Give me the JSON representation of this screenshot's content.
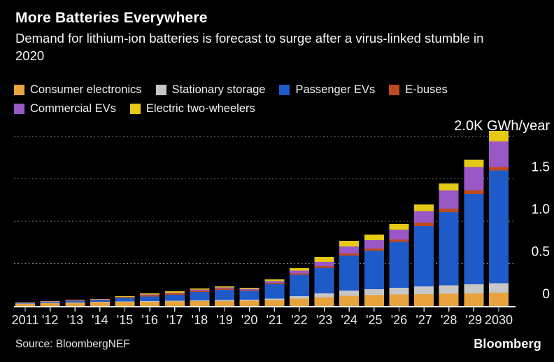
{
  "chart_data": {
    "type": "bar",
    "stacked": true,
    "title": "More Batteries Everywhere",
    "subtitle": "Demand for lithium-ion batteries is forecast to surge after a virus-linked stumble in 2020",
    "unit": "GWh/year",
    "top_axis_label": "2.0K GWh/year",
    "ylim": [
      0,
      2000
    ],
    "gridlines_gwh": [
      500,
      1000,
      1500,
      2000
    ],
    "grid_style": "dotted horizontal, labels on right",
    "legend_position": "top-left, two rows",
    "categories": [
      2011,
      2012,
      2013,
      2014,
      2015,
      2016,
      2017,
      2018,
      2019,
      2020,
      2021,
      2022,
      2023,
      2024,
      2025,
      2026,
      2027,
      2028,
      2029,
      2030
    ],
    "x_tick_labels": [
      "2011",
      "'12",
      "'13",
      "'14",
      "'15",
      "'16",
      "'17",
      "'18",
      "'19",
      "'20",
      "'21",
      "'22",
      "'23",
      "'24",
      "'25",
      "'26",
      "'27",
      "'28",
      "'29",
      "2030"
    ],
    "y_ticks": [
      {
        "value": 0,
        "label": "0"
      },
      {
        "value": 500,
        "label": "0.5"
      },
      {
        "value": 1000,
        "label": "1.0"
      },
      {
        "value": 1500,
        "label": "1.5"
      }
    ],
    "series": [
      {
        "name": "Consumer electronics",
        "color": "#E8A33D",
        "values": [
          28,
          34,
          40,
          44,
          48,
          50,
          53,
          56,
          58,
          60,
          70,
          85,
          105,
          120,
          130,
          135,
          140,
          145,
          150,
          155
        ]
      },
      {
        "name": "Stationary storage",
        "color": "#C7C7C7",
        "values": [
          2,
          3,
          3,
          4,
          5,
          7,
          8,
          10,
          13,
          15,
          18,
          30,
          45,
          60,
          70,
          80,
          90,
          100,
          108,
          112
        ]
      },
      {
        "name": "Passenger EVs",
        "color": "#1E5BC8",
        "values": [
          6,
          12,
          20,
          22,
          40,
          56,
          72,
          98,
          118,
          102,
          172,
          253,
          300,
          414,
          453,
          541,
          713,
          862,
          1064,
          1331
        ]
      },
      {
        "name": "E-buses",
        "color": "#C04A1E",
        "values": [
          2,
          3,
          4,
          5,
          9,
          14,
          16,
          18,
          16,
          11,
          14,
          16,
          20,
          25,
          25,
          28,
          40,
          41,
          47,
          41
        ]
      },
      {
        "name": "Commercial EVs",
        "color": "#9A57C6",
        "values": [
          1,
          2,
          3,
          4,
          6,
          8,
          10,
          13,
          13,
          13,
          20,
          34,
          52,
          83,
          99,
          116,
          138,
          215,
          270,
          303
        ]
      },
      {
        "name": "Electric two-wheelers",
        "color": "#E5C914",
        "values": [
          3,
          4,
          5,
          5,
          8,
          15,
          14,
          13,
          13,
          14,
          20,
          28,
          56,
          66,
          66,
          66,
          77,
          83,
          88,
          124
        ]
      }
    ],
    "totals_approx_gwh": [
      42,
      58,
      75,
      84,
      116,
      150,
      173,
      208,
      231,
      215,
      314,
      446,
      578,
      768,
      843,
      966,
      1198,
      1446,
      1727,
      2066
    ]
  },
  "footer": {
    "source": "Source: BloombergNEF",
    "brand": "Bloomberg"
  }
}
